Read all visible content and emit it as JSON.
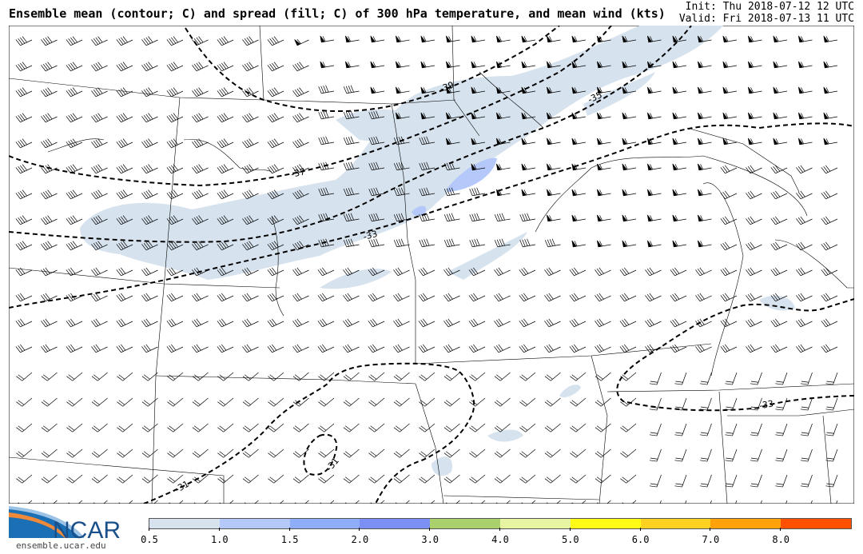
{
  "header": {
    "title": "Ensemble mean (contour; C) and spread (fill; C) of 300 hPa temperature, and mean wind (kts)",
    "init": "Init: Thu 2018-07-12 12 UTC",
    "valid": "Valid: Fri 2018-07-13 11 UTC"
  },
  "contour_labels": [
    "-39",
    "-37",
    "-35",
    "-33",
    "-33",
    "-31",
    "-31"
  ],
  "colorbar": {
    "colors": [
      "#d6e2ed",
      "#b4c8fa",
      "#8eaefa",
      "#7b8ff5",
      "#a9d06b",
      "#e7f5a2",
      "#fffb15",
      "#ffd221",
      "#ffa20a",
      "#ff5100"
    ],
    "ticks": [
      "0.5",
      "1.0",
      "1.5",
      "2.0",
      "3.0",
      "4.0",
      "5.0",
      "6.0",
      "7.0",
      "8.0"
    ]
  },
  "logo": {
    "text": "NCAR",
    "url": "ensemble.ucar.edu"
  }
}
